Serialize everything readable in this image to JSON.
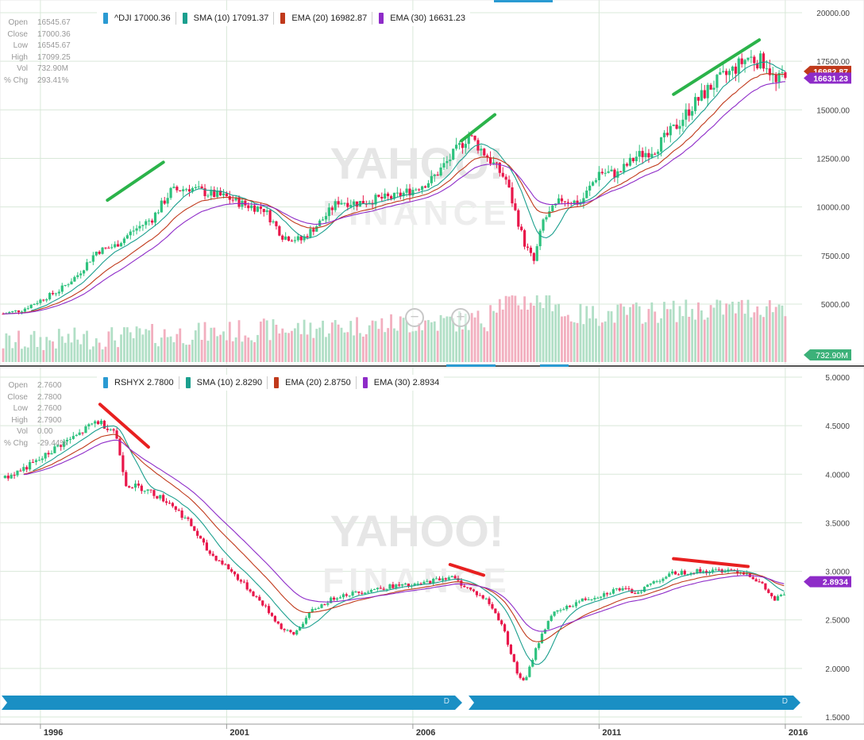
{
  "chart_data": [
    {
      "type": "candlestick",
      "symbol": "^DJI",
      "info": {
        "open": {
          "label": "Open",
          "value": "16545.67"
        },
        "close": {
          "label": "Close",
          "value": "17000.36"
        },
        "low": {
          "label": "Low",
          "value": "16545.67"
        },
        "high": {
          "label": "High",
          "value": "17099.25"
        },
        "vol": {
          "label": "Vol",
          "value": "732.90M"
        },
        "chg": {
          "label": "% Chg",
          "value": "293.41%"
        }
      },
      "legend": [
        {
          "text": "^DJI 17000.36",
          "color": "#2a9ad2"
        },
        {
          "text": "SMA (10) 17091.37",
          "color": "#1b9f8e"
        },
        {
          "text": "EMA (20) 16982.87",
          "color": "#c0391b"
        },
        {
          "text": "EMA (30) 16631.23",
          "color": "#8e2bc8"
        }
      ],
      "y_ticks": [
        "20000.00",
        "17500.00",
        "15000.00",
        "12500.00",
        "10000.00",
        "7500.00",
        "5000.00"
      ],
      "ylim": [
        3500,
        20000
      ],
      "price_tags": [
        {
          "text": "16982.87",
          "value": 16982.87,
          "color": "#c0391b"
        },
        {
          "text": "16631.23",
          "value": 16631.23,
          "color": "#8e2bc8"
        }
      ],
      "volume_tag": {
        "text": "732.90M",
        "color": "#3cb179"
      },
      "close_path": [
        [
          1995.0,
          4500
        ],
        [
          1995.5,
          4700
        ],
        [
          1996.0,
          5200
        ],
        [
          1996.5,
          5700
        ],
        [
          1997.0,
          6500
        ],
        [
          1997.5,
          7700
        ],
        [
          1998.0,
          8000
        ],
        [
          1998.5,
          8800
        ],
        [
          1999.0,
          9400
        ],
        [
          1999.5,
          10800
        ],
        [
          2000.0,
          11000
        ],
        [
          2000.5,
          10700
        ],
        [
          2001.0,
          10500
        ],
        [
          2001.5,
          10100
        ],
        [
          2002.0,
          9900
        ],
        [
          2002.5,
          8500
        ],
        [
          2003.0,
          8300
        ],
        [
          2003.5,
          9200
        ],
        [
          2004.0,
          10300
        ],
        [
          2004.5,
          10200
        ],
        [
          2005.0,
          10400
        ],
        [
          2005.5,
          10500
        ],
        [
          2006.0,
          10900
        ],
        [
          2006.5,
          11400
        ],
        [
          2007.0,
          12500
        ],
        [
          2007.5,
          13700
        ],
        [
          2008.0,
          12600
        ],
        [
          2008.5,
          11400
        ],
        [
          2009.0,
          8100
        ],
        [
          2009.25,
          7200
        ],
        [
          2009.5,
          9300
        ],
        [
          2010.0,
          10400
        ],
        [
          2010.5,
          10200
        ],
        [
          2011.0,
          11800
        ],
        [
          2011.5,
          11700
        ],
        [
          2012.0,
          12600
        ],
        [
          2012.5,
          13000
        ],
        [
          2013.0,
          14000
        ],
        [
          2013.5,
          15200
        ],
        [
          2014.0,
          16200
        ],
        [
          2014.5,
          16900
        ],
        [
          2015.0,
          17700
        ],
        [
          2015.5,
          17400
        ],
        [
          2015.75,
          16300
        ],
        [
          2016.0,
          17000
        ]
      ],
      "trend_lines": [
        {
          "x": [
            1997.8,
            1999.3
          ],
          "y": [
            10350,
            12300
          ],
          "color": "#2bb34a"
        },
        {
          "x": [
            2007.3,
            2008.2
          ],
          "y": [
            13400,
            14750
          ],
          "color": "#2bb34a"
        },
        {
          "x": [
            2013.0,
            2015.3
          ],
          "y": [
            15800,
            18600
          ],
          "color": "#2bb34a"
        }
      ]
    },
    {
      "type": "candlestick",
      "symbol": "RSHYX",
      "info": {
        "open": {
          "label": "Open",
          "value": "2.7600"
        },
        "close": {
          "label": "Close",
          "value": "2.7800"
        },
        "low": {
          "label": "Low",
          "value": "2.7600"
        },
        "high": {
          "label": "High",
          "value": "2.7900"
        },
        "vol": {
          "label": "Vol",
          "value": "0.00"
        },
        "chg": {
          "label": "% Chg",
          "value": "-29.44%"
        }
      },
      "legend": [
        {
          "text": "RSHYX 2.7800",
          "color": "#2a9ad2"
        },
        {
          "text": "SMA (10) 2.8290",
          "color": "#1b9f8e"
        },
        {
          "text": "EMA (20) 2.8750",
          "color": "#c0391b"
        },
        {
          "text": "EMA (30) 2.8934",
          "color": "#8e2bc8"
        }
      ],
      "y_ticks": [
        "5.0000",
        "4.5000",
        "4.0000",
        "3.5000",
        "3.0000",
        "2.5000",
        "2.0000",
        "1.5000"
      ],
      "ylim": [
        1.5,
        5.0
      ],
      "price_tags": [
        {
          "text": "2.8934",
          "value": 2.8934,
          "color": "#8e2bc8"
        }
      ],
      "close_path": [
        [
          1995.0,
          3.95
        ],
        [
          1995.5,
          4.05
        ],
        [
          1996.0,
          4.15
        ],
        [
          1996.5,
          4.3
        ],
        [
          1997.0,
          4.4
        ],
        [
          1997.5,
          4.55
        ],
        [
          1998.0,
          4.45
        ],
        [
          1998.3,
          3.9
        ],
        [
          1998.8,
          3.85
        ],
        [
          1999.5,
          3.7
        ],
        [
          2000.0,
          3.5
        ],
        [
          2000.5,
          3.2
        ],
        [
          2001.0,
          3.05
        ],
        [
          2001.5,
          2.85
        ],
        [
          2002.0,
          2.65
        ],
        [
          2002.5,
          2.4
        ],
        [
          2002.8,
          2.35
        ],
        [
          2003.3,
          2.6
        ],
        [
          2004.0,
          2.75
        ],
        [
          2004.5,
          2.78
        ],
        [
          2005.0,
          2.82
        ],
        [
          2005.5,
          2.85
        ],
        [
          2006.0,
          2.85
        ],
        [
          2006.5,
          2.9
        ],
        [
          2007.0,
          2.95
        ],
        [
          2007.5,
          2.82
        ],
        [
          2008.0,
          2.7
        ],
        [
          2008.4,
          2.45
        ],
        [
          2008.8,
          1.95
        ],
        [
          2009.0,
          1.85
        ],
        [
          2009.3,
          2.2
        ],
        [
          2009.7,
          2.55
        ],
        [
          2010.0,
          2.6
        ],
        [
          2010.5,
          2.7
        ],
        [
          2011.0,
          2.75
        ],
        [
          2011.5,
          2.82
        ],
        [
          2012.0,
          2.78
        ],
        [
          2012.5,
          2.9
        ],
        [
          2013.0,
          2.98
        ],
        [
          2013.5,
          3.0
        ],
        [
          2014.0,
          3.0
        ],
        [
          2014.5,
          3.02
        ],
        [
          2015.0,
          2.98
        ],
        [
          2015.4,
          2.85
        ],
        [
          2015.7,
          2.7
        ],
        [
          2016.0,
          2.78
        ]
      ],
      "trend_lines": [
        {
          "x": [
            1997.6,
            1998.9
          ],
          "y": [
            4.72,
            4.28
          ],
          "color": "#e82020"
        },
        {
          "x": [
            2007.0,
            2007.9
          ],
          "y": [
            3.07,
            2.96
          ],
          "color": "#e82020"
        },
        {
          "x": [
            2013.0,
            2015.0
          ],
          "y": [
            3.13,
            3.05
          ],
          "color": "#e82020"
        }
      ]
    }
  ],
  "x_axis": {
    "range": [
      1995.0,
      2016.45
    ],
    "ticks": [
      {
        "label": "1996",
        "value": 1996
      },
      {
        "label": "2001",
        "value": 2001
      },
      {
        "label": "2006",
        "value": 2006
      },
      {
        "label": "2011",
        "value": 2011
      },
      {
        "label": "2016",
        "value": 2016
      }
    ]
  },
  "watermark": {
    "line1": "YAHOO!",
    "line2": "FINANCE"
  },
  "navigator": {
    "grip": "D"
  },
  "colors": {
    "up": "#2ec27e",
    "down": "#e8164a",
    "sma": "#1b9f8e",
    "ema20": "#c0391b",
    "ema30": "#8e2bc8",
    "grid": "#d9e8d9",
    "accent": "#2a9ad2"
  }
}
